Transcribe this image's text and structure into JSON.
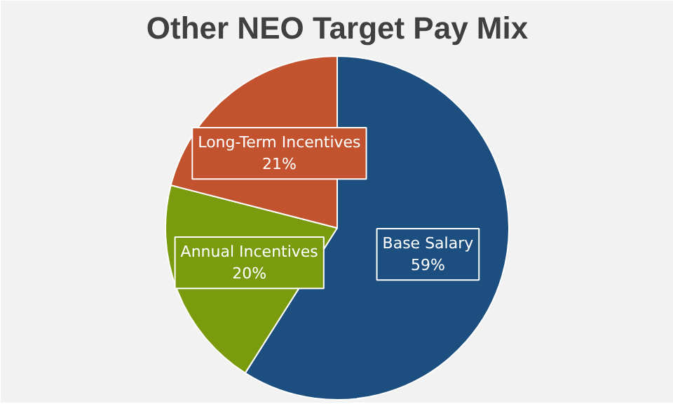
{
  "chart_data": {
    "type": "pie",
    "title": "Other NEO Target Pay Mix",
    "categories": [
      "Base Salary",
      "Annual Incentives",
      "Long-Term Incentives"
    ],
    "values": [
      59,
      20,
      21
    ],
    "colors": [
      "#1c4f80",
      "#7a9b0e",
      "#c2532e"
    ],
    "value_labels": [
      "59%",
      "20%",
      "21%"
    ],
    "legend": false
  }
}
